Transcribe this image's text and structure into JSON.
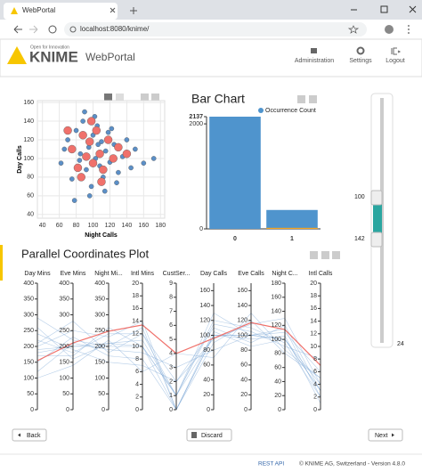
{
  "browser": {
    "tab_title": "WebPortal",
    "url": "localhost:8080/knime/"
  },
  "header": {
    "tagline": "Open for Innovation",
    "logo": "KNIME",
    "product": "WebPortal",
    "nav": [
      "Administration",
      "Settings",
      "Logout"
    ]
  },
  "chart_data": [
    {
      "type": "scatter",
      "xlabel": "Night Calls",
      "ylabel": "Day Calls",
      "xlim": [
        34,
        185
      ],
      "ylim": [
        36,
        162
      ],
      "xticks": [
        40,
        60,
        80,
        100,
        120,
        140,
        160,
        180
      ],
      "yticks": [
        40,
        60,
        80,
        100,
        120,
        140,
        160
      ],
      "grid": true,
      "series": [
        {
          "color": "#5b8fc7",
          "x": [
            62,
            70,
            75,
            80,
            85,
            88,
            92,
            95,
            98,
            100,
            103,
            105,
            108,
            110,
            112,
            115,
            118,
            120,
            125,
            130,
            135,
            140,
            150,
            160,
            172,
            78,
            90,
            96,
            102,
            114,
            122,
            128,
            84,
            106,
            66,
            145
          ],
          "y": [
            95,
            120,
            78,
            130,
            105,
            140,
            88,
            112,
            70,
            125,
            100,
            135,
            92,
            118,
            80,
            108,
            128,
            96,
            115,
            85,
            102,
            120,
            110,
            95,
            100,
            55,
            150,
            60,
            145,
            65,
            132,
            74,
            98,
            115,
            110,
            90
          ]
        },
        {
          "color": "#f0716b",
          "x": [
            75,
            82,
            88,
            92,
            96,
            100,
            104,
            108,
            112,
            118,
            124,
            130,
            86,
            98,
            110,
            140,
            70
          ],
          "y": [
            110,
            90,
            125,
            102,
            118,
            95,
            130,
            105,
            88,
            120,
            100,
            112,
            80,
            140,
            75,
            105,
            130
          ]
        }
      ]
    },
    {
      "type": "bar",
      "title": "Bar Chart",
      "categories": [
        "0",
        "1"
      ],
      "ylim": [
        0,
        2137
      ],
      "yticks": [
        0,
        2000,
        2137
      ],
      "series": [
        {
          "name": "Occurrence Count",
          "color": "#4f94cd",
          "values": [
            2137,
            360
          ]
        },
        {
          "color": "#f5a623",
          "values": [
            0,
            20
          ]
        }
      ]
    },
    {
      "type": "parallel",
      "title": "Parallel Coordinates Plot",
      "axes": [
        {
          "name": "Day Mins",
          "ylim": [
            0,
            400
          ],
          "yticks": [
            0,
            50,
            100,
            150,
            200,
            250,
            300,
            350,
            400
          ]
        },
        {
          "name": "Eve Mins",
          "ylim": [
            0,
            400
          ],
          "yticks": [
            0,
            50,
            100,
            150,
            200,
            250,
            300,
            350,
            400
          ]
        },
        {
          "name": "Night Mi...",
          "ylim": [
            0,
            400
          ],
          "yticks": [
            0,
            50,
            100,
            150,
            200,
            250,
            300,
            350,
            400
          ]
        },
        {
          "name": "Intl Mins",
          "ylim": [
            0,
            20
          ],
          "yticks": [
            0,
            2,
            4,
            6,
            8,
            10,
            12,
            14,
            16,
            18,
            20
          ]
        },
        {
          "name": "CustSer...",
          "ylim": [
            0,
            9
          ],
          "yticks": [
            0,
            1,
            2,
            3,
            4,
            5,
            6,
            7,
            8,
            9
          ]
        },
        {
          "name": "Day Calls",
          "ylim": [
            0,
            170
          ],
          "yticks": [
            0,
            20,
            40,
            60,
            80,
            100,
            120,
            140,
            160
          ]
        },
        {
          "name": "Eve Calls",
          "ylim": [
            0,
            170
          ],
          "yticks": [
            0,
            20,
            40,
            60,
            80,
            100,
            120,
            140,
            160
          ]
        },
        {
          "name": "Night C...",
          "ylim": [
            0,
            180
          ],
          "yticks": [
            0,
            20,
            40,
            60,
            80,
            100,
            120,
            140,
            160,
            180
          ]
        },
        {
          "name": "Intl Calls",
          "ylim": [
            0,
            20
          ],
          "yticks": [
            0,
            2,
            4,
            6,
            8,
            10,
            12,
            14,
            16,
            18,
            20
          ]
        }
      ],
      "series": [
        {
          "color": "#7aa6d6",
          "values": [
            180,
            200,
            200,
            10,
            1,
            100,
            100,
            100,
            4
          ]
        },
        {
          "color": "#7aa6d6",
          "values": [
            220,
            180,
            240,
            12,
            2,
            110,
            90,
            120,
            3
          ]
        },
        {
          "color": "#7aa6d6",
          "values": [
            150,
            230,
            170,
            8,
            0,
            90,
            120,
            80,
            5
          ]
        },
        {
          "color": "#7aa6d6",
          "values": [
            260,
            160,
            210,
            11,
            1,
            120,
            110,
            95,
            2
          ]
        },
        {
          "color": "#7aa6d6",
          "values": [
            120,
            210,
            190,
            9,
            3,
            80,
            100,
            110,
            6
          ]
        },
        {
          "color": "#7aa6d6",
          "values": [
            200,
            250,
            230,
            14,
            0,
            105,
            85,
            100,
            3
          ]
        },
        {
          "color": "#7aa6d6",
          "values": [
            240,
            190,
            150,
            7,
            2,
            95,
            115,
            130,
            4
          ]
        },
        {
          "color": "#7aa6d6",
          "values": [
            170,
            170,
            260,
            10,
            1,
            115,
            105,
            90,
            8
          ]
        },
        {
          "color": "#7aa6d6",
          "values": [
            290,
            220,
            200,
            13,
            0,
            100,
            95,
            105,
            1
          ]
        },
        {
          "color": "#7aa6d6",
          "values": [
            100,
            140,
            220,
            6,
            4,
            70,
            130,
            85,
            5
          ]
        },
        {
          "color": "#7aa6d6",
          "values": [
            210,
            280,
            180,
            12,
            1,
            130,
            100,
            115,
            2
          ]
        },
        {
          "color": "#7aa6d6",
          "values": [
            190,
            200,
            210,
            10,
            0,
            100,
            100,
            100,
            3
          ]
        },
        {
          "color": "#f0716b",
          "values": [
            155,
            211,
            248,
            13.4,
            4,
            96,
            117,
            114,
            7
          ]
        }
      ]
    }
  ],
  "slider": {
    "lower": 100,
    "upper": 142,
    "bottom": 24
  },
  "buttons": [
    "Back",
    "Discard",
    "Next"
  ],
  "footer": {
    "link": "REST API",
    "copyright": "© KNIME AG, Switzerland - Version 4.8.0"
  }
}
